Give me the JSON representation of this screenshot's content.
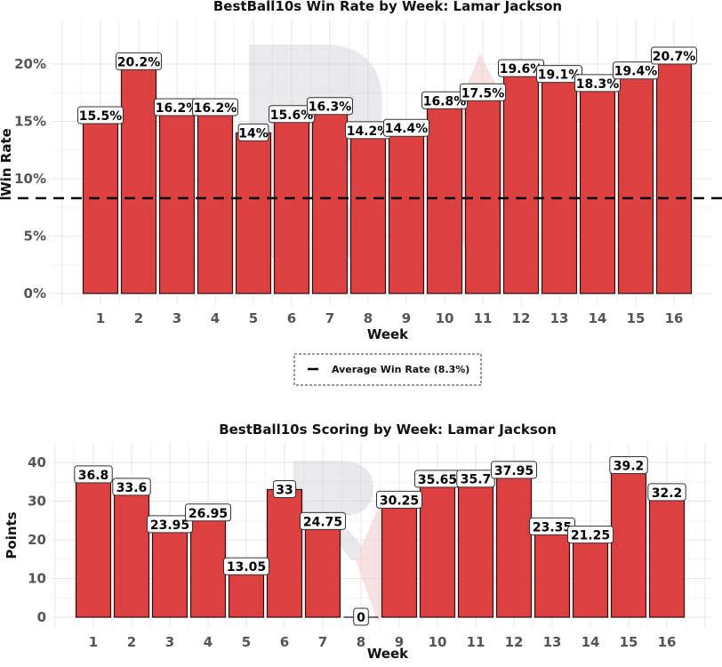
{
  "chart_data": [
    {
      "type": "bar",
      "title": "BestBall10s Win Rate by Week: Lamar Jackson",
      "xlabel": "Week",
      "ylabel": "Win Rate",
      "categories": [
        "1",
        "2",
        "3",
        "4",
        "5",
        "6",
        "7",
        "8",
        "9",
        "10",
        "11",
        "12",
        "13",
        "14",
        "15",
        "16"
      ],
      "values": [
        15.5,
        20.2,
        16.2,
        16.2,
        14,
        15.6,
        16.3,
        14.2,
        14.4,
        16.8,
        17.5,
        19.6,
        19.1,
        18.3,
        19.4,
        20.7
      ],
      "data_labels": [
        "15.5%",
        "20.2%",
        "16.2%",
        "16.2%",
        "14%",
        "15.6%",
        "16.3%",
        "14.2%",
        "14.4%",
        "16.8%",
        "17.5%",
        "19.6%",
        "19.1%",
        "18.3%",
        "19.4%",
        "20.7%"
      ],
      "y_ticks": [
        0,
        5,
        10,
        15,
        20
      ],
      "y_tick_labels": [
        "0%",
        "5%",
        "10%",
        "15%",
        "20%"
      ],
      "ylim": [
        0,
        23.5
      ],
      "reference_line": {
        "value": 8.3,
        "style": "dashed",
        "label": "Average Win Rate (8.3%)"
      },
      "legend": {
        "position": "bottom",
        "entries": [
          "Average Win Rate (8.3%)"
        ]
      },
      "grid": true,
      "bar_color": "#dc4040"
    },
    {
      "type": "bar",
      "title": "BestBall10s Scoring by Week: Lamar Jackson",
      "xlabel": "Week",
      "ylabel": "Points",
      "categories": [
        "1",
        "2",
        "3",
        "4",
        "5",
        "6",
        "7",
        "8",
        "9",
        "10",
        "11",
        "12",
        "13",
        "14",
        "15",
        "16"
      ],
      "values": [
        36.8,
        33.6,
        23.95,
        26.95,
        13.05,
        33,
        24.75,
        0,
        30.25,
        35.65,
        35.7,
        37.95,
        23.35,
        21.25,
        39.2,
        32.2
      ],
      "data_labels": [
        "36.8",
        "33.6",
        "23.95",
        "26.95",
        "13.05",
        "33",
        "24.75",
        "0",
        "30.25",
        "35.65",
        "35.7",
        "37.95",
        "23.35",
        "21.25",
        "39.2",
        "32.2"
      ],
      "y_ticks": [
        0,
        10,
        20,
        30,
        40
      ],
      "y_tick_labels": [
        "0",
        "10",
        "20",
        "30",
        "40"
      ],
      "ylim": [
        0,
        44
      ],
      "grid": true,
      "bar_color": "#dc4040"
    }
  ]
}
